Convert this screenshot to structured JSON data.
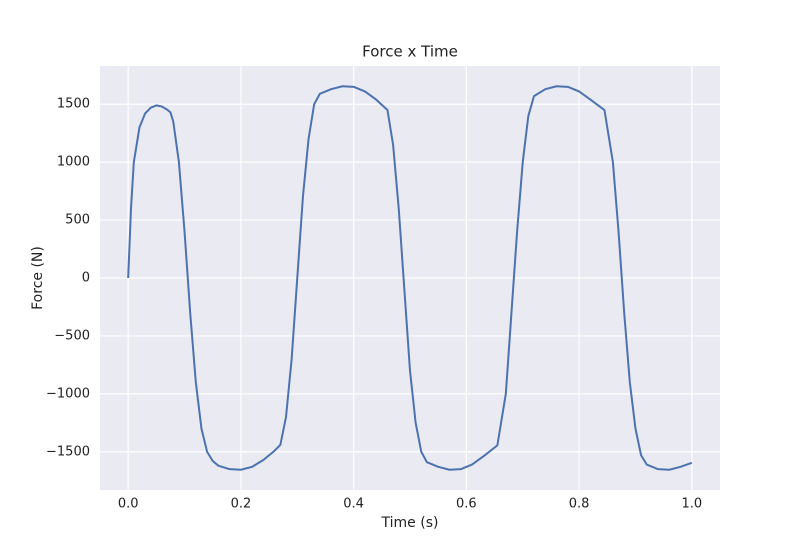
{
  "chart_data": {
    "type": "line",
    "title": "Force x Time",
    "xlabel": "Time (s)",
    "ylabel": "Force (N)",
    "x": [
      0,
      0.005,
      0.01,
      0.02,
      0.03,
      0.04,
      0.05,
      0.06,
      0.07,
      0.075,
      0.08,
      0.09,
      0.1,
      0.11,
      0.12,
      0.13,
      0.14,
      0.15,
      0.16,
      0.18,
      0.2,
      0.22,
      0.24,
      0.26,
      0.27,
      0.28,
      0.29,
      0.3,
      0.31,
      0.32,
      0.33,
      0.34,
      0.36,
      0.38,
      0.4,
      0.42,
      0.44,
      0.46,
      0.47,
      0.48,
      0.49,
      0.5,
      0.51,
      0.52,
      0.53,
      0.55,
      0.57,
      0.59,
      0.61,
      0.63,
      0.655,
      0.67,
      0.68,
      0.69,
      0.7,
      0.71,
      0.72,
      0.74,
      0.76,
      0.78,
      0.8,
      0.82,
      0.845,
      0.86,
      0.87,
      0.88,
      0.89,
      0.9,
      0.91,
      0.92,
      0.94,
      0.96,
      0.98,
      1.0
    ],
    "series": [
      {
        "name": "Force",
        "color": "#4c72b0",
        "values": [
          0,
          600,
          1000,
          1300,
          1420,
          1470,
          1490,
          1480,
          1450,
          1430,
          1350,
          1000,
          400,
          -300,
          -900,
          -1300,
          -1500,
          -1580,
          -1620,
          -1650,
          -1655,
          -1630,
          -1570,
          -1490,
          -1440,
          -1200,
          -700,
          0,
          700,
          1200,
          1500,
          1590,
          1630,
          1655,
          1650,
          1610,
          1540,
          1450,
          1150,
          600,
          -100,
          -800,
          -1250,
          -1500,
          -1590,
          -1630,
          -1655,
          -1650,
          -1610,
          -1540,
          -1445,
          -1000,
          -300,
          400,
          1000,
          1400,
          1570,
          1630,
          1655,
          1650,
          1610,
          1540,
          1450,
          1000,
          400,
          -300,
          -900,
          -1300,
          -1530,
          -1610,
          -1650,
          -1655,
          -1630,
          -1595
        ]
      }
    ],
    "xlim": [
      -0.05,
      1.05
    ],
    "ylim": [
      -1830,
      1830
    ],
    "xticks": [
      {
        "value": 0,
        "label": "0.0"
      },
      0.2,
      0.4,
      0.6,
      0.8,
      {
        "value": 1,
        "label": "1.0"
      }
    ],
    "yticks": [
      {
        "value": -1500,
        "label": "−1500"
      },
      {
        "value": -1000,
        "label": "−1000"
      },
      {
        "value": -500,
        "label": "−500"
      },
      0,
      500,
      1000,
      1500
    ],
    "grid": true
  }
}
